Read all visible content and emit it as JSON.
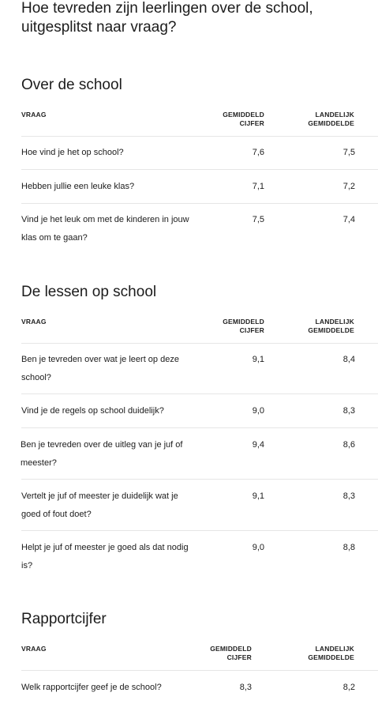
{
  "page": {
    "title": "Hoe tevreden zijn leerlingen over de school, uitgesplitst naar vraag?"
  },
  "headers": {
    "question": "VRAAG",
    "average": [
      "GEMIDDELD",
      "CIJFER"
    ],
    "national": [
      "LANDELIJK",
      "GEMIDDELDE"
    ]
  },
  "sections": [
    {
      "title": "Over de school",
      "rows": [
        {
          "question": "Hoe vind je het op school?",
          "average": "7,6",
          "national": "7,5"
        },
        {
          "question": "Hebben jullie een leuke klas?",
          "average": "7,1",
          "national": "7,2"
        },
        {
          "question": "Vind je het leuk om met de kinderen in jouw klas om te gaan?",
          "average": "7,5",
          "national": "7,4"
        }
      ]
    },
    {
      "title": "De lessen op school",
      "rows": [
        {
          "question": "Ben je tevreden over wat je leert op deze school?",
          "average": "9,1",
          "national": "8,4"
        },
        {
          "question": "Vind je de regels op school duidelijk?",
          "average": "9,0",
          "national": "8,3"
        },
        {
          "question": "Ben je tevreden over de uitleg van je juf of meester?",
          "average": "9,4",
          "national": "8,6"
        },
        {
          "question": "Vertelt je juf of meester je duidelijk wat je goed of fout doet?",
          "average": "9,1",
          "national": "8,3"
        },
        {
          "question": "Helpt je juf of meester je goed als dat nodig is?",
          "average": "9,0",
          "national": "8,8"
        }
      ]
    },
    {
      "title": "Rapportcijfer",
      "rows": [
        {
          "question": "Welk rapportcijfer geef je de school?",
          "average": "8,3",
          "national": "8,2"
        }
      ]
    }
  ]
}
